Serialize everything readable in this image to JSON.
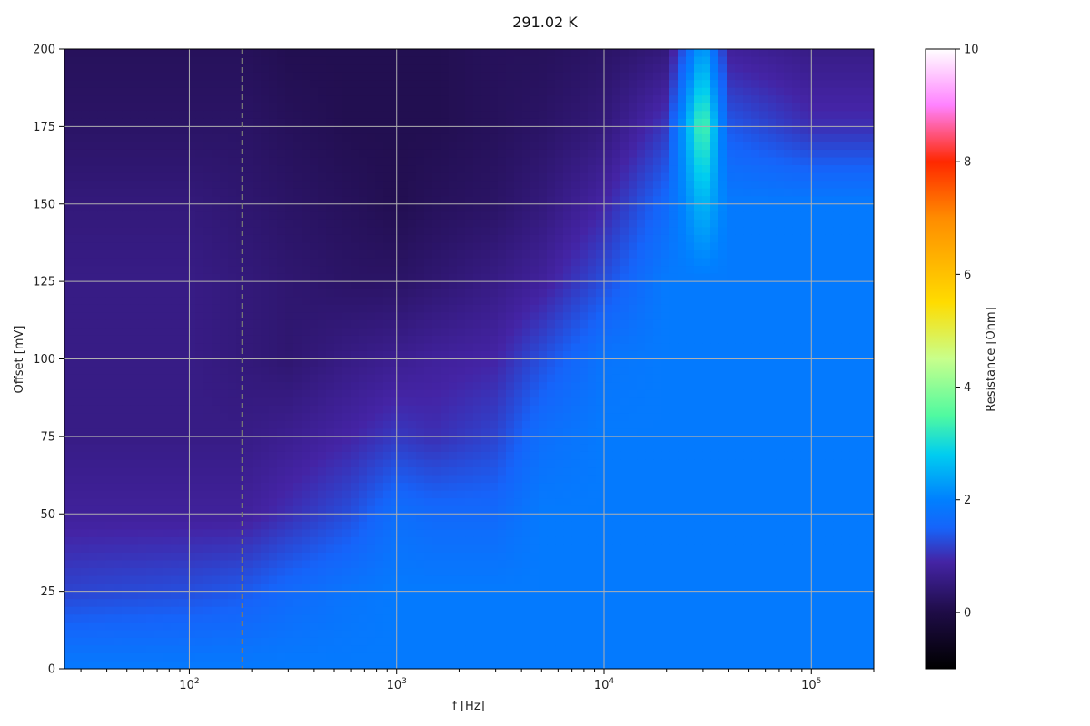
{
  "chart_data": {
    "type": "heatmap",
    "title": "291.02 K",
    "xlabel": "f [Hz]",
    "ylabel": "Offset [mV]",
    "x_scale": "log",
    "xlim": [
      25,
      200000
    ],
    "ylim": [
      0,
      200
    ],
    "x_ticks": [
      {
        "value": 100,
        "base": "10",
        "exp": "2"
      },
      {
        "value": 1000,
        "base": "10",
        "exp": "3"
      },
      {
        "value": 10000,
        "base": "10",
        "exp": "4"
      },
      {
        "value": 100000,
        "base": "10",
        "exp": "5"
      }
    ],
    "y_ticks": [
      0,
      25,
      50,
      75,
      100,
      125,
      150,
      175,
      200
    ],
    "grid": true,
    "colorbar": {
      "label": "Resistance [Ohm]",
      "range": [
        -1,
        10
      ],
      "ticks": [
        0,
        2,
        4,
        6,
        8,
        10
      ],
      "colormap": "gist_ncar-like"
    },
    "reference_line": {
      "x": 180,
      "style": "dashed",
      "color": "#777777"
    },
    "surface": {
      "x_grid": [
        25,
        100,
        180,
        300,
        600,
        1000,
        1500,
        3000,
        5000,
        10000,
        20000,
        30000,
        40000,
        100000,
        200000
      ],
      "y_grid": [
        0,
        25,
        50,
        75,
        100,
        125,
        150,
        175,
        200
      ],
      "values": [
        [
          1.9,
          1.9,
          1.9,
          1.9,
          1.9,
          1.9,
          1.9,
          1.9,
          1.9,
          1.9,
          1.9,
          1.9,
          1.9,
          1.9,
          1.9
        ],
        [
          1.2,
          1.3,
          1.4,
          1.6,
          1.8,
          1.9,
          1.9,
          1.9,
          1.9,
          1.9,
          1.9,
          1.9,
          1.9,
          1.9,
          1.9
        ],
        [
          0.8,
          0.8,
          0.8,
          1.0,
          1.3,
          1.7,
          1.6,
          1.6,
          1.9,
          1.9,
          1.9,
          1.9,
          1.9,
          1.9,
          1.9
        ],
        [
          0.6,
          0.6,
          0.6,
          0.7,
          0.9,
          1.1,
          1.0,
          1.2,
          1.7,
          1.9,
          1.9,
          1.9,
          1.9,
          1.9,
          1.9
        ],
        [
          0.6,
          0.6,
          0.5,
          0.4,
          0.6,
          0.7,
          0.8,
          0.9,
          1.3,
          1.8,
          1.9,
          1.9,
          1.9,
          1.9,
          1.9
        ],
        [
          0.6,
          0.6,
          0.5,
          0.4,
          0.3,
          0.3,
          0.4,
          0.6,
          0.8,
          1.3,
          1.9,
          1.9,
          1.9,
          1.9,
          1.9
        ],
        [
          0.5,
          0.5,
          0.4,
          0.3,
          0.2,
          0.1,
          0.2,
          0.3,
          0.5,
          0.9,
          1.6,
          2.6,
          1.9,
          1.9,
          1.9
        ],
        [
          0.3,
          0.3,
          0.3,
          0.2,
          0.1,
          0.1,
          0.1,
          0.2,
          0.3,
          0.5,
          1.1,
          3.6,
          1.4,
          1.0,
          1.0
        ],
        [
          0.2,
          0.2,
          0.2,
          0.1,
          0.1,
          0.1,
          0.1,
          0.2,
          0.2,
          0.3,
          0.5,
          2.4,
          0.8,
          0.6,
          0.6
        ]
      ]
    }
  }
}
